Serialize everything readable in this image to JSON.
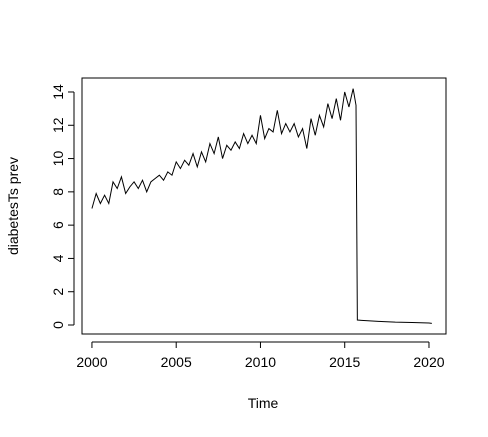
{
  "chart_data": {
    "type": "line",
    "x_label": "Time",
    "y_label": "diabetesTs prev",
    "x": [
      2000,
      2000.25,
      2000.5,
      2000.75,
      2001,
      2001.25,
      2001.5,
      2001.75,
      2002,
      2002.25,
      2002.5,
      2002.75,
      2003,
      2003.25,
      2003.5,
      2003.75,
      2004,
      2004.25,
      2004.5,
      2004.75,
      2005,
      2005.25,
      2005.5,
      2005.75,
      2006,
      2006.25,
      2006.5,
      2006.75,
      2007,
      2007.25,
      2007.5,
      2007.75,
      2008,
      2008.25,
      2008.5,
      2008.75,
      2009,
      2009.25,
      2009.5,
      2009.75,
      2010,
      2010.25,
      2010.5,
      2010.75,
      2011,
      2011.25,
      2011.5,
      2011.75,
      2012,
      2012.25,
      2012.5,
      2012.75,
      2013,
      2013.25,
      2013.5,
      2013.75,
      2014,
      2014.25,
      2014.5,
      2014.75,
      2015,
      2015.25,
      2015.5,
      2015.67,
      2015.75,
      2016,
      2017,
      2018,
      2019,
      2020,
      2020.17
    ],
    "series": [
      {
        "color": "#000000",
        "values": [
          7.0,
          7.9,
          7.3,
          7.8,
          7.3,
          8.6,
          8.2,
          8.9,
          7.9,
          8.3,
          8.6,
          8.2,
          8.7,
          8.0,
          8.6,
          8.8,
          9.0,
          8.7,
          9.2,
          9.0,
          9.8,
          9.4,
          9.9,
          9.6,
          10.3,
          9.5,
          10.4,
          9.8,
          10.9,
          10.3,
          11.3,
          10.0,
          10.8,
          10.5,
          11.0,
          10.6,
          11.5,
          10.9,
          11.4,
          10.9,
          12.6,
          11.2,
          11.8,
          11.6,
          12.9,
          11.5,
          12.1,
          11.6,
          12.1,
          11.3,
          11.8,
          10.6,
          12.4,
          11.4,
          12.6,
          11.9,
          13.3,
          12.4,
          13.6,
          12.3,
          14.0,
          13.1,
          14.2,
          13.2,
          0.3,
          0.28,
          0.22,
          0.17,
          0.15,
          0.12,
          0.1
        ]
      }
    ],
    "xlim": [
      1999.41,
      2021.01
    ],
    "xticks": [
      2000,
      2005,
      2010,
      2015,
      2020
    ],
    "ylim": [
      -0.54,
      14.84
    ],
    "yticks": [
      0,
      2,
      4,
      6,
      8,
      10,
      12,
      14
    ]
  }
}
